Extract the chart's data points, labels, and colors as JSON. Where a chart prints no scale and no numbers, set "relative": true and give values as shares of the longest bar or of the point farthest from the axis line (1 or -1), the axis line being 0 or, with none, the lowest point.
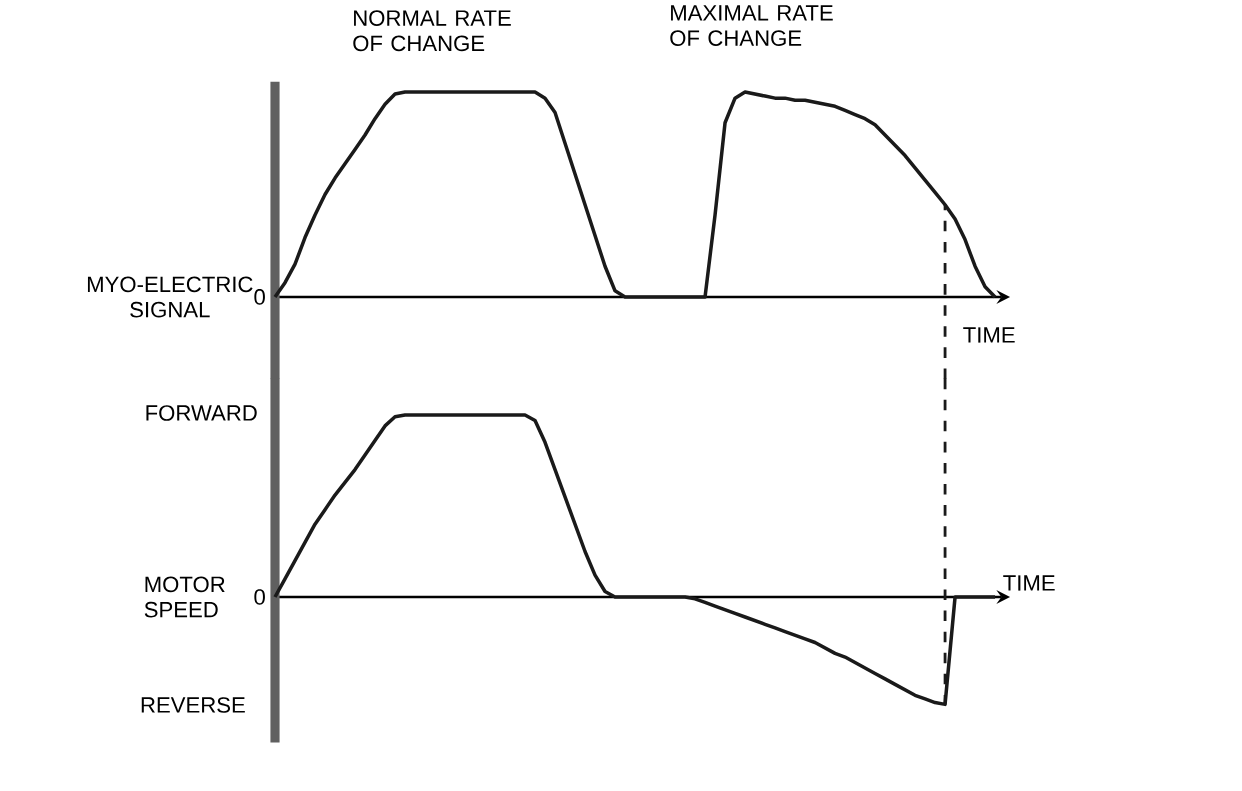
{
  "chart_data": [
    {
      "type": "line",
      "relative": true,
      "ylabel": "MYO-ELECTRIC SIGNAL",
      "xlabel": "TIME",
      "categories": [
        null,
        null,
        null,
        null,
        null,
        null,
        null,
        null,
        null,
        null,
        null,
        null,
        null,
        null,
        null,
        null,
        null,
        null,
        null,
        null,
        null,
        null,
        null,
        null,
        null,
        null,
        null,
        null,
        null,
        null,
        null,
        null,
        null,
        null,
        null,
        null,
        null,
        null,
        null,
        null,
        null,
        null,
        null,
        null,
        null,
        null,
        null,
        null,
        null,
        null,
        null,
        null,
        null,
        null,
        null,
        null,
        null,
        null,
        null,
        null,
        null,
        null,
        null,
        null,
        null,
        null,
        null,
        null,
        null,
        null,
        null,
        null,
        null
      ],
      "series": [
        {
          "color": "#1a1a1a",
          "values": [
            0,
            0.07,
            0.16,
            0.29,
            0.4,
            0.5,
            0.58,
            0.65,
            0.72,
            0.79,
            0.87,
            0.94,
            0.99,
            1,
            1,
            1,
            1,
            1,
            1,
            1,
            1,
            1,
            1,
            1,
            1,
            1,
            1,
            0.97,
            0.9,
            0.75,
            0.6,
            0.45,
            0.3,
            0.15,
            0.03,
            0,
            0,
            0,
            0,
            0,
            0,
            0,
            0,
            0,
            0.4,
            0.85,
            0.97,
            1,
            0.99,
            0.98,
            0.97,
            0.97,
            0.96,
            0.96,
            0.95,
            0.94,
            0.93,
            0.91,
            0.89,
            0.87,
            0.84,
            0.79,
            0.74,
            0.69,
            0.63,
            0.57,
            0.51,
            0.45,
            0.38,
            0.28,
            0.15,
            0.05,
            0
          ]
        }
      ],
      "annotations": [
        "NORMAL RATE OF CHANGE",
        "MAXIMAL RATE OF CHANGE",
        "0"
      ]
    },
    {
      "type": "line",
      "relative": true,
      "ylabel": "MOTOR SPEED",
      "xlabel": "TIME",
      "categories": [
        null,
        null,
        null,
        null,
        null,
        null,
        null,
        null,
        null,
        null,
        null,
        null,
        null,
        null,
        null,
        null,
        null,
        null,
        null,
        null,
        null,
        null,
        null,
        null,
        null,
        null,
        null,
        null,
        null,
        null,
        null,
        null,
        null,
        null,
        null,
        null,
        null,
        null,
        null,
        null,
        null,
        null,
        null,
        null,
        null,
        null,
        null,
        null,
        null,
        null,
        null,
        null,
        null,
        null,
        null,
        null,
        null,
        null,
        null,
        null,
        null,
        null,
        null,
        null,
        null,
        null,
        null,
        null,
        null,
        null,
        null,
        null,
        null
      ],
      "series": [
        {
          "color": "#1a1a1a",
          "values": [
            0,
            0.1,
            0.2,
            0.3,
            0.4,
            0.48,
            0.56,
            0.63,
            0.7,
            0.78,
            0.86,
            0.94,
            0.99,
            1,
            1,
            1,
            1,
            1,
            1,
            1,
            1,
            1,
            1,
            1,
            1,
            1,
            0.97,
            0.85,
            0.7,
            0.55,
            0.4,
            0.25,
            0.12,
            0.03,
            0,
            0,
            0,
            0,
            0,
            0,
            0,
            0,
            -0.01,
            -0.03,
            -0.05,
            -0.07,
            -0.09,
            -0.11,
            -0.13,
            -0.15,
            -0.17,
            -0.19,
            -0.21,
            -0.23,
            -0.25,
            -0.28,
            -0.31,
            -0.33,
            -0.36,
            -0.39,
            -0.42,
            -0.45,
            -0.48,
            -0.51,
            -0.54,
            -0.56,
            -0.58,
            -0.59,
            0,
            0,
            0,
            0,
            0
          ]
        }
      ],
      "annotations": [
        "FORWARD",
        "0",
        "REVERSE"
      ]
    }
  ]
}
